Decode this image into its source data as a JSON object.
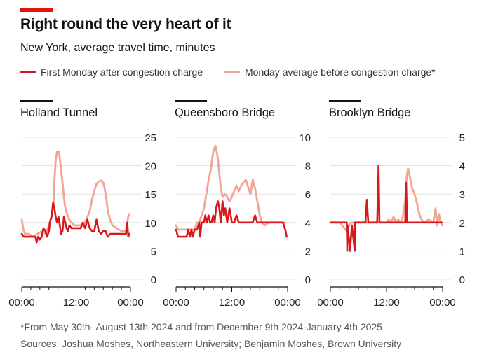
{
  "title": "Right round the very heart of it",
  "subtitle": "New York, average travel time, minutes",
  "footnote": "*From May 30th- August 13th 2024 and from December 9th 2024-January 4th 2025",
  "sources": "Sources: Joshua Moshes, Northeastern University; Benjamin Moshes, Brown University",
  "legend": [
    {
      "label": "First Monday after congestion charge",
      "color": "#d7191c"
    },
    {
      "label": "Monday average before congestion charge*",
      "color": "#f2a595"
    }
  ],
  "colors": {
    "after": "#d7191c",
    "before": "#f2a595",
    "grid": "#e3e3e3",
    "axis": "#121212"
  },
  "chart_data": [
    {
      "type": "line",
      "title": "Holland Tunnel",
      "xlabel": "",
      "ylabel": "",
      "x_ticks": [
        "00:00",
        "12:00",
        "00:00"
      ],
      "x_range": [
        0,
        24
      ],
      "ylim": [
        0,
        25
      ],
      "y_ticks": [
        0,
        5,
        10,
        15,
        20,
        25
      ],
      "grid": true,
      "series": [
        {
          "name": "Monday average before congestion charge*",
          "x": [
            0,
            0.3,
            0.7,
            1.5,
            2.5,
            3.5,
            4.5,
            5.3,
            6,
            6.5,
            7,
            7.2,
            7.5,
            7.8,
            8.2,
            8.6,
            9,
            9.5,
            10,
            10.5,
            11,
            11.5,
            12,
            13,
            14,
            15,
            15.5,
            16,
            16.5,
            17,
            17.5,
            18,
            18.3,
            18.7,
            19,
            19.5,
            20,
            21,
            22,
            23,
            23.5,
            23.8
          ],
          "y": [
            10.5,
            9,
            8,
            8,
            7.5,
            8,
            8.5,
            8,
            9.5,
            11,
            13,
            17,
            21,
            22.5,
            22.5,
            20,
            17,
            13,
            11.5,
            10.5,
            10,
            9.5,
            9.5,
            9.5,
            10,
            12,
            14,
            15.5,
            16.8,
            17.2,
            17.4,
            17,
            16,
            14,
            12,
            10.5,
            9.5,
            9,
            8.5,
            8.5,
            11,
            11.5
          ]
        },
        {
          "name": "First Monday after congestion charge",
          "x": [
            0,
            0.5,
            1,
            2,
            3,
            3.3,
            3.6,
            4,
            4.4,
            4.8,
            5.2,
            5.6,
            6,
            6.2,
            6.6,
            6.9,
            7.2,
            7.5,
            7.8,
            8.1,
            8.4,
            8.7,
            9,
            9.3,
            9.6,
            9.9,
            10.2,
            10.5,
            11,
            11.5,
            12,
            13,
            13.5,
            14,
            14.5,
            15,
            15.5,
            16,
            16.5,
            17,
            17.5,
            18,
            18.5,
            19,
            19.5,
            20,
            21,
            22,
            23,
            23.3,
            23.5,
            23.8
          ],
          "y": [
            8,
            7.5,
            7.5,
            7.5,
            7.5,
            6.5,
            7.5,
            7,
            7.5,
            9,
            8.5,
            7.5,
            8.5,
            10,
            11,
            13.5,
            12.5,
            11,
            10,
            11,
            9.5,
            8,
            8.5,
            11,
            10,
            9,
            8.5,
            9.5,
            9,
            9,
            9,
            9,
            10,
            9,
            10.5,
            9,
            8.5,
            8.5,
            10.5,
            8.5,
            8,
            8.5,
            8.5,
            7.5,
            8,
            8,
            8,
            8,
            8,
            10,
            7.5,
            8
          ]
        }
      ]
    },
    {
      "type": "line",
      "title": "Queensboro Bridge",
      "xlabel": "",
      "ylabel": "",
      "x_ticks": [
        "00:00",
        "12:00",
        "00:00"
      ],
      "x_range": [
        0,
        24
      ],
      "ylim": [
        0,
        10
      ],
      "y_ticks": [
        0,
        2,
        4,
        6,
        8,
        10
      ],
      "grid": true,
      "series": [
        {
          "name": "Monday average before congestion charge*",
          "x": [
            0,
            0.5,
            1,
            2,
            3,
            4,
            4.5,
            5,
            5.5,
            6,
            6.5,
            7,
            7.5,
            8,
            8.5,
            9,
            9.3,
            9.6,
            10,
            10.5,
            11,
            11.5,
            12,
            12.5,
            13,
            13.5,
            14,
            14.5,
            15,
            15.5,
            16,
            16.5,
            17,
            17.5,
            18,
            18.5,
            19,
            20,
            21,
            22,
            23,
            23.5
          ],
          "y": [
            3.8,
            3.5,
            3.5,
            3.5,
            3.5,
            3.5,
            4,
            4,
            4.5,
            5,
            6,
            7,
            7.8,
            9,
            9.4,
            8.5,
            7.5,
            6.5,
            5.8,
            6,
            5.8,
            5.5,
            5.8,
            6.2,
            6.6,
            6.2,
            6.6,
            6.8,
            7,
            6.5,
            6,
            7,
            6.4,
            5.5,
            4.5,
            4,
            3.8,
            4,
            4,
            4,
            4,
            4
          ]
        },
        {
          "name": "First Monday after congestion charge",
          "x": [
            0,
            0.4,
            0.8,
            1.5,
            2.3,
            2.6,
            3,
            3.3,
            3.6,
            4,
            4.5,
            5,
            5.2,
            5.5,
            6,
            6.3,
            6.6,
            7,
            7.3,
            7.6,
            8,
            8.3,
            8.6,
            9,
            9.3,
            9.6,
            10,
            10.3,
            10.6,
            11,
            11.5,
            12,
            12.5,
            13,
            13.5,
            14,
            14.5,
            15,
            15.5,
            16,
            16.5,
            17,
            17.5,
            18,
            19,
            20,
            21,
            22,
            23,
            23.5,
            23.8
          ],
          "y": [
            3.5,
            3,
            3,
            3,
            3,
            3.5,
            3,
            3.5,
            3,
            3.5,
            3.5,
            4,
            3,
            4,
            4,
            4.5,
            4,
            4.5,
            4,
            4,
            4.5,
            4,
            5,
            5.5,
            5,
            4,
            5.5,
            4.5,
            5,
            4,
            5,
            4,
            4,
            4.5,
            4,
            4,
            4,
            4,
            4,
            4,
            4,
            4.5,
            4,
            4,
            4,
            4,
            4,
            4,
            4,
            3.5,
            3
          ]
        }
      ]
    },
    {
      "type": "line",
      "title": "Brooklyn Bridge",
      "xlabel": "",
      "ylabel": "",
      "x_ticks": [
        "00:00",
        "12:00",
        "00:00"
      ],
      "x_range": [
        0,
        24
      ],
      "ylim": [
        0,
        5
      ],
      "y_ticks": [
        0,
        1,
        2,
        3,
        4,
        5
      ],
      "grid": true,
      "series": [
        {
          "name": "Monday average before congestion charge*",
          "x": [
            0,
            1,
            2,
            2.5,
            3,
            3.5,
            4,
            4.5,
            5,
            5.5,
            6,
            7,
            8,
            9,
            10,
            11,
            11.5,
            12,
            12.5,
            13,
            13.5,
            14,
            14.5,
            15,
            15.5,
            16,
            16.3,
            16.6,
            17,
            17.5,
            18,
            18.5,
            19,
            19.5,
            20,
            21,
            22,
            22.5,
            22.8,
            23.2,
            23.6,
            23.9
          ],
          "y": [
            2,
            2,
            2,
            1.9,
            1.8,
            1.7,
            1.9,
            2,
            2,
            2,
            2,
            2,
            2,
            2,
            2,
            2,
            2,
            2,
            2.1,
            2,
            2.2,
            2,
            2.1,
            2,
            2.2,
            2.8,
            3.6,
            3.9,
            3.6,
            3.2,
            3,
            2.7,
            2.3,
            2.1,
            2,
            2.1,
            2,
            2.5,
            1.9,
            2.3,
            2,
            1.9
          ]
        },
        {
          "name": "First Monday after congestion charge",
          "x": [
            0,
            1,
            2,
            3,
            3.5,
            3.6,
            3.7,
            4.2,
            4.6,
            5.2,
            5.3,
            6,
            7,
            7.5,
            7.8,
            8.1,
            8.5,
            9,
            9.5,
            10,
            10.3,
            10.5,
            10.7,
            11,
            12,
            13,
            14,
            15,
            15.5,
            16,
            16.2,
            16.4,
            16.7,
            17,
            18,
            19,
            20,
            21,
            22,
            23,
            23.8
          ],
          "y": [
            2,
            2,
            2,
            2,
            2,
            1,
            1.9,
            1,
            1.9,
            1,
            2,
            2,
            2,
            2,
            2.8,
            2,
            2,
            2,
            2,
            2,
            4,
            2,
            2,
            2,
            2,
            2,
            2,
            2,
            2,
            2,
            3.4,
            2,
            2,
            2,
            2,
            2,
            2,
            2,
            2,
            2,
            2
          ]
        }
      ]
    }
  ]
}
